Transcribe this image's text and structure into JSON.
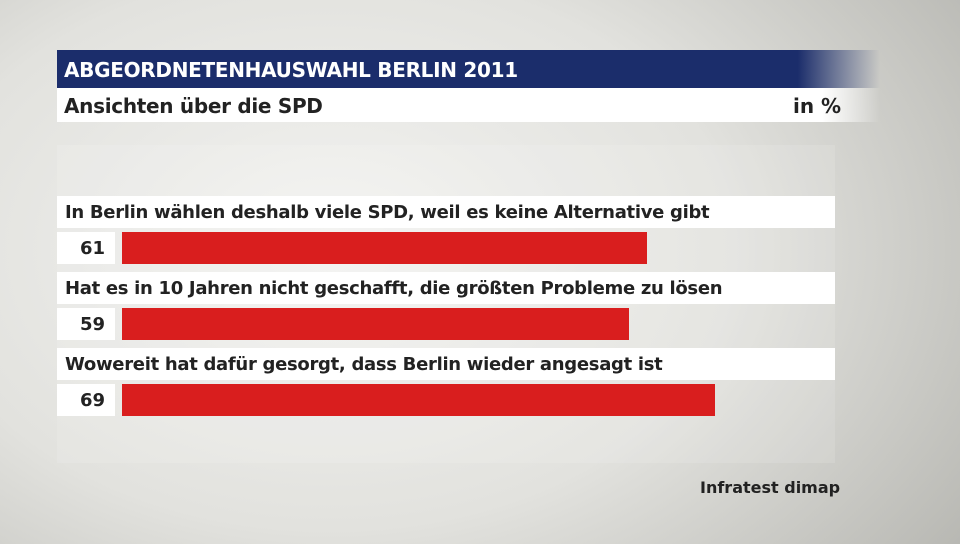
{
  "header": {
    "title": "ABGEORDNETENHAUSWAHL BERLIN 2011",
    "subtitle": "Ansichten über die SPD",
    "unit": "in %"
  },
  "source": "Infratest dimap",
  "colors": {
    "title_bg": "#1b2d6b",
    "bar": "#d91e1e",
    "label_bg": "#ffffff"
  },
  "chart_data": {
    "type": "bar",
    "orientation": "horizontal",
    "title": "ABGEORDNETENHAUSWAHL BERLIN 2011",
    "subtitle": "Ansichten über die SPD",
    "unit": "in %",
    "categories": [
      "In Berlin wählen deshalb viele SPD, weil es keine Alternative gibt",
      "Hat es in 10 Jahren nicht geschafft, die größten Probleme zu lösen",
      "Wowereit hat dafür gesorgt, dass Berlin wieder angesagt ist"
    ],
    "values": [
      61,
      59,
      69
    ],
    "value_labels": [
      "61",
      "59",
      "69"
    ],
    "xlim": [
      0,
      100
    ],
    "grid": false,
    "legend": "none"
  }
}
